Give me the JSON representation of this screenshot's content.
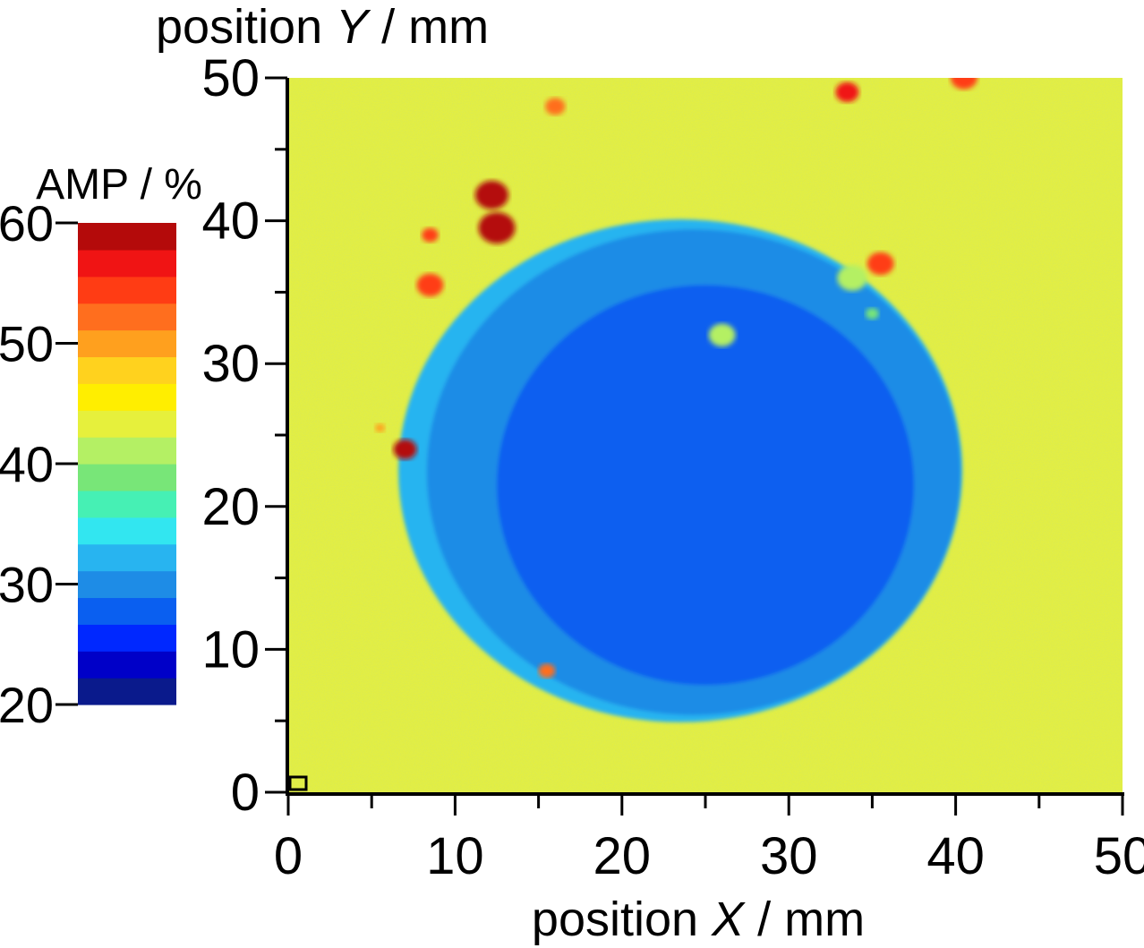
{
  "chart_data": {
    "type": "heatmap",
    "title": "",
    "xlabel": {
      "prefix": "position ",
      "variable": "X",
      "suffix": " / mm"
    },
    "ylabel": {
      "prefix": "position ",
      "variable": "Y",
      "suffix": " / mm"
    },
    "xlim": [
      0,
      50
    ],
    "ylim": [
      0,
      50
    ],
    "x_ticks": [
      0,
      10,
      20,
      30,
      40,
      50
    ],
    "y_ticks": [
      0,
      10,
      20,
      30,
      40,
      50
    ],
    "grid": false,
    "colorbar": {
      "label": "AMP / %",
      "range": [
        20,
        60
      ],
      "ticks": [
        20,
        30,
        40,
        50,
        60
      ],
      "placement": "left",
      "colors": [
        "#0a1a8c",
        "#0000c8",
        "#0028ff",
        "#0a5ff0",
        "#1e8ce6",
        "#28b4f0",
        "#32e6f0",
        "#46f0b4",
        "#78e678",
        "#b4f064",
        "#e6f03c",
        "#ffee00",
        "#ffd21e",
        "#ffa01e",
        "#ff6e1e",
        "#ff3c14",
        "#f01414",
        "#b40a0a"
      ]
    },
    "background_value": 44,
    "regions": [
      {
        "name": "specimen-rim",
        "shape": "ellipse",
        "cx": 23.5,
        "cy": 22.5,
        "rx": 16.9,
        "ry": 17.6,
        "value": 32
      },
      {
        "name": "specimen-disc",
        "shape": "ellipse",
        "cx": 24.3,
        "cy": 22.4,
        "rx": 16.0,
        "ry": 17.0,
        "value": 29
      },
      {
        "name": "specimen-core",
        "shape": "ellipse",
        "cx": 25.0,
        "cy": 21.5,
        "rx": 12.5,
        "ry": 14.0,
        "value": 27
      }
    ],
    "spots": [
      {
        "x": 12.2,
        "y": 41.8,
        "r": 1.0,
        "value": 58
      },
      {
        "x": 12.5,
        "y": 39.5,
        "r": 1.1,
        "value": 58
      },
      {
        "x": 8.5,
        "y": 39.0,
        "r": 0.5,
        "value": 55
      },
      {
        "x": 8.5,
        "y": 35.5,
        "r": 0.8,
        "value": 55
      },
      {
        "x": 16.0,
        "y": 48.0,
        "r": 0.6,
        "value": 52
      },
      {
        "x": 33.5,
        "y": 49.0,
        "r": 0.7,
        "value": 56
      },
      {
        "x": 40.5,
        "y": 50.0,
        "r": 0.8,
        "value": 54
      },
      {
        "x": 35.5,
        "y": 37.0,
        "r": 0.8,
        "value": 55
      },
      {
        "x": 7.0,
        "y": 24.0,
        "r": 0.7,
        "value": 59
      },
      {
        "x": 15.5,
        "y": 8.5,
        "r": 0.5,
        "value": 52
      },
      {
        "x": 5.5,
        "y": 25.5,
        "r": 0.3,
        "value": 50
      },
      {
        "x": 33.8,
        "y": 36.0,
        "r": 0.9,
        "value": 40
      },
      {
        "x": 26.0,
        "y": 32.0,
        "r": 0.8,
        "value": 40
      },
      {
        "x": 35.0,
        "y": 33.5,
        "r": 0.4,
        "value": 38
      }
    ]
  }
}
